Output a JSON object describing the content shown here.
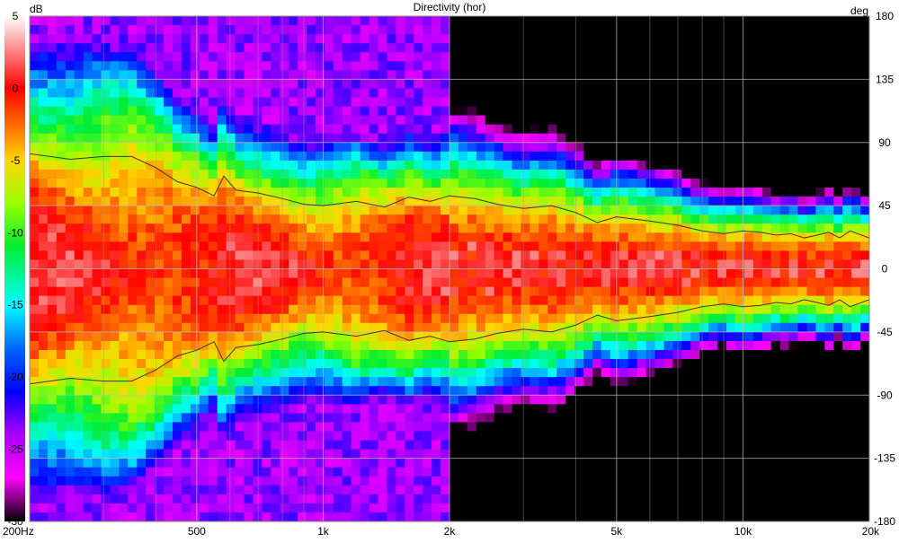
{
  "chart_data": {
    "type": "heatmap",
    "title": "Directivity (hor)",
    "xlabel": "",
    "ylabel": "deg",
    "colorbar_label": "dB",
    "x_scale": "log",
    "xlim": [
      200,
      20000
    ],
    "ylim": [
      -180,
      180
    ],
    "zlim": [
      -30,
      5
    ],
    "grid": true,
    "x_ticks": [
      {
        "value": 200,
        "label": "200Hz"
      },
      {
        "value": 500,
        "label": "500"
      },
      {
        "value": 1000,
        "label": "1k"
      },
      {
        "value": 2000,
        "label": "2k"
      },
      {
        "value": 5000,
        "label": "5k"
      },
      {
        "value": 10000,
        "label": "10k"
      },
      {
        "value": 20000,
        "label": "20k"
      }
    ],
    "x_minor_ticks": [
      300,
      400,
      600,
      700,
      800,
      900,
      3000,
      4000,
      6000,
      7000,
      8000,
      9000
    ],
    "y_ticks": [
      180,
      135,
      90,
      45,
      0,
      -45,
      -90,
      -135,
      -180
    ],
    "colorbar_ticks": [
      5,
      0,
      -5,
      -10,
      -15,
      -20,
      -25,
      -30
    ],
    "colormap": [
      {
        "db": 5,
        "color": "#ffffff"
      },
      {
        "db": 0,
        "color": "#ff0000"
      },
      {
        "db": -5,
        "color": "#ffd700"
      },
      {
        "db": -8,
        "color": "#99ff00"
      },
      {
        "db": -11,
        "color": "#00ee33"
      },
      {
        "db": -15,
        "color": "#00ffff"
      },
      {
        "db": -18,
        "color": "#0066ff"
      },
      {
        "db": -21,
        "color": "#0000ff"
      },
      {
        "db": -24,
        "color": "#aa00ff"
      },
      {
        "db": -27,
        "color": "#ff00ff"
      },
      {
        "db": -30,
        "color": "#000000"
      }
    ],
    "contour_level_db": -6,
    "contour_beamwidth_deg": [
      {
        "freq": 200,
        "angle": 82
      },
      {
        "freq": 250,
        "angle": 78
      },
      {
        "freq": 300,
        "angle": 80
      },
      {
        "freq": 350,
        "angle": 80
      },
      {
        "freq": 400,
        "angle": 72
      },
      {
        "freq": 450,
        "angle": 62
      },
      {
        "freq": 500,
        "angle": 58
      },
      {
        "freq": 550,
        "angle": 52
      },
      {
        "freq": 580,
        "angle": 66
      },
      {
        "freq": 620,
        "angle": 56
      },
      {
        "freq": 700,
        "angle": 54
      },
      {
        "freq": 800,
        "angle": 50
      },
      {
        "freq": 900,
        "angle": 46
      },
      {
        "freq": 1000,
        "angle": 45
      },
      {
        "freq": 1200,
        "angle": 48
      },
      {
        "freq": 1400,
        "angle": 44
      },
      {
        "freq": 1600,
        "angle": 51
      },
      {
        "freq": 1800,
        "angle": 48
      },
      {
        "freq": 2000,
        "angle": 52
      },
      {
        "freq": 2300,
        "angle": 50
      },
      {
        "freq": 2600,
        "angle": 46
      },
      {
        "freq": 3000,
        "angle": 43
      },
      {
        "freq": 3500,
        "angle": 45
      },
      {
        "freq": 4000,
        "angle": 40
      },
      {
        "freq": 4500,
        "angle": 33
      },
      {
        "freq": 5000,
        "angle": 37
      },
      {
        "freq": 6000,
        "angle": 34
      },
      {
        "freq": 7000,
        "angle": 31
      },
      {
        "freq": 8000,
        "angle": 27
      },
      {
        "freq": 9000,
        "angle": 25
      },
      {
        "freq": 10000,
        "angle": 27
      },
      {
        "freq": 11000,
        "angle": 26
      },
      {
        "freq": 12000,
        "angle": 24
      },
      {
        "freq": 13000,
        "angle": 25
      },
      {
        "freq": 14000,
        "angle": 22
      },
      {
        "freq": 15000,
        "angle": 24
      },
      {
        "freq": 16000,
        "angle": 26
      },
      {
        "freq": 17000,
        "angle": 22
      },
      {
        "freq": 18000,
        "angle": 27
      },
      {
        "freq": 20000,
        "angle": 22
      }
    ]
  }
}
